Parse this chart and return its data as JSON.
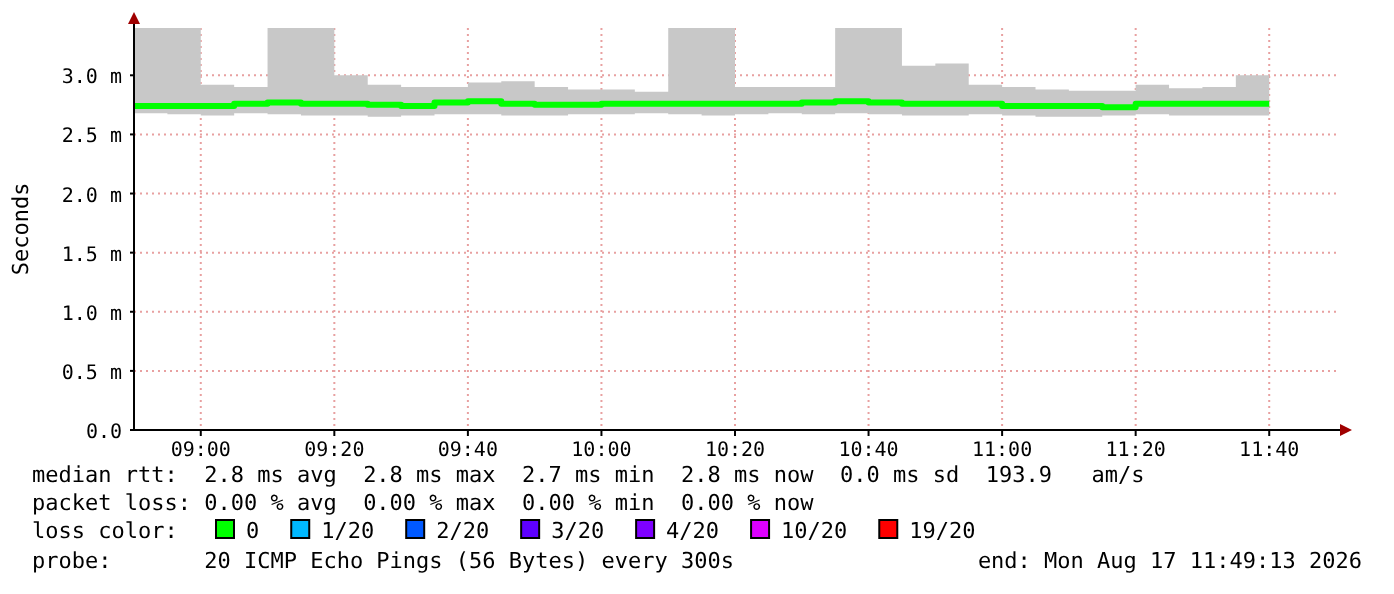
{
  "chart_data": {
    "type": "step",
    "ylabel": "Seconds",
    "legend_title": "loss color:",
    "legend": "bottom",
    "grid": true,
    "x": [
      "2026-08-17T08:50",
      "2026-08-17T08:55",
      "2026-08-17T09:00",
      "2026-08-17T09:05",
      "2026-08-17T09:10",
      "2026-08-17T09:15",
      "2026-08-17T09:20",
      "2026-08-17T09:25",
      "2026-08-17T09:30",
      "2026-08-17T09:35",
      "2026-08-17T09:40",
      "2026-08-17T09:45",
      "2026-08-17T09:50",
      "2026-08-17T09:55",
      "2026-08-17T10:00",
      "2026-08-17T10:05",
      "2026-08-17T10:10",
      "2026-08-17T10:15",
      "2026-08-17T10:20",
      "2026-08-17T10:25",
      "2026-08-17T10:30",
      "2026-08-17T10:35",
      "2026-08-17T10:40",
      "2026-08-17T10:45",
      "2026-08-17T10:50",
      "2026-08-17T10:55",
      "2026-08-17T11:00",
      "2026-08-17T11:05",
      "2026-08-17T11:10",
      "2026-08-17T11:15",
      "2026-08-17T11:20",
      "2026-08-17T11:25",
      "2026-08-17T11:30",
      "2026-08-17T11:35",
      "2026-08-17T11:40"
    ],
    "series": [
      {
        "name": "0",
        "color": "#00ff00",
        "values": [
          2.74,
          2.74,
          2.74,
          2.76,
          2.77,
          2.76,
          2.76,
          2.75,
          2.74,
          2.77,
          2.78,
          2.76,
          2.75,
          2.75,
          2.76,
          2.76,
          2.76,
          2.76,
          2.76,
          2.76,
          2.77,
          2.78,
          2.77,
          2.76,
          2.76,
          2.76,
          2.74,
          2.74,
          2.74,
          2.73,
          2.76,
          2.76,
          2.76,
          2.76,
          2.76
        ],
        "lower": [
          2.68,
          2.67,
          2.66,
          2.68,
          2.67,
          2.66,
          2.66,
          2.65,
          2.66,
          2.67,
          2.67,
          2.66,
          2.66,
          2.67,
          2.67,
          2.68,
          2.67,
          2.66,
          2.67,
          2.68,
          2.67,
          2.68,
          2.67,
          2.66,
          2.66,
          2.67,
          2.66,
          2.65,
          2.65,
          2.66,
          2.67,
          2.66,
          2.66,
          2.66,
          2.66
        ],
        "upper": [
          3.4,
          3.4,
          2.92,
          2.9,
          3.4,
          3.4,
          3.0,
          2.92,
          2.9,
          2.9,
          2.94,
          2.95,
          2.9,
          2.88,
          2.88,
          2.86,
          3.4,
          3.4,
          2.9,
          2.9,
          2.9,
          3.4,
          3.4,
          3.08,
          3.1,
          2.92,
          2.9,
          2.88,
          2.87,
          2.87,
          2.92,
          2.89,
          2.9,
          3.0,
          3.0
        ]
      },
      {
        "name": "1/20",
        "color": "#00b8ff",
        "values": [
          null,
          null,
          null,
          null,
          null,
          null,
          null,
          null,
          null,
          null,
          null,
          null,
          null,
          null,
          null,
          null,
          null,
          null,
          null,
          null,
          null,
          null,
          null,
          null,
          null,
          null,
          null,
          null,
          null,
          null,
          null,
          null,
          null,
          null,
          null
        ]
      },
      {
        "name": "2/20",
        "color": "#0059ff",
        "values": [
          null,
          null,
          null,
          null,
          null,
          null,
          null,
          null,
          null,
          null,
          null,
          null,
          null,
          null,
          null,
          null,
          null,
          null,
          null,
          null,
          null,
          null,
          null,
          null,
          null,
          null,
          null,
          null,
          null,
          null,
          null,
          null,
          null,
          null,
          null
        ]
      },
      {
        "name": "3/20",
        "color": "#5e00ff",
        "values": [
          null,
          null,
          null,
          null,
          null,
          null,
          null,
          null,
          null,
          null,
          null,
          null,
          null,
          null,
          null,
          null,
          null,
          null,
          null,
          null,
          null,
          null,
          null,
          null,
          null,
          null,
          null,
          null,
          null,
          null,
          null,
          null,
          null,
          null,
          null
        ]
      },
      {
        "name": "4/20",
        "color": "#7e00ff",
        "values": [
          null,
          null,
          null,
          null,
          null,
          null,
          null,
          null,
          null,
          null,
          null,
          null,
          null,
          null,
          null,
          null,
          null,
          null,
          null,
          null,
          null,
          null,
          null,
          null,
          null,
          null,
          null,
          null,
          null,
          null,
          null,
          null,
          null,
          null,
          null
        ]
      },
      {
        "name": "10/20",
        "color": "#dd00ff",
        "values": [
          null,
          null,
          null,
          null,
          null,
          null,
          null,
          null,
          null,
          null,
          null,
          null,
          null,
          null,
          null,
          null,
          null,
          null,
          null,
          null,
          null,
          null,
          null,
          null,
          null,
          null,
          null,
          null,
          null,
          null,
          null,
          null,
          null,
          null,
          null
        ]
      },
      {
        "name": "19/20",
        "color": "#ff0000",
        "values": [
          null,
          null,
          null,
          null,
          null,
          null,
          null,
          null,
          null,
          null,
          null,
          null,
          null,
          null,
          null,
          null,
          null,
          null,
          null,
          null,
          null,
          null,
          null,
          null,
          null,
          null,
          null,
          null,
          null,
          null,
          null,
          null,
          null,
          null,
          null
        ]
      }
    ],
    "xlim": [
      "2026-08-17T08:50",
      "2026-08-17T11:50"
    ],
    "xticks": [
      {
        "value": "2026-08-17T09:00",
        "label": "09:00"
      },
      {
        "value": "2026-08-17T09:20",
        "label": "09:20"
      },
      {
        "value": "2026-08-17T09:40",
        "label": "09:40"
      },
      {
        "value": "2026-08-17T10:00",
        "label": "10:00"
      },
      {
        "value": "2026-08-17T10:20",
        "label": "10:20"
      },
      {
        "value": "2026-08-17T10:40",
        "label": "10:40"
      },
      {
        "value": "2026-08-17T11:00",
        "label": "11:00"
      },
      {
        "value": "2026-08-17T11:20",
        "label": "11:20"
      },
      {
        "value": "2026-08-17T11:40",
        "label": "11:40"
      }
    ],
    "ylim": [
      0,
      3.4
    ],
    "yticks": [
      {
        "value": 0,
        "label": "0.0"
      },
      {
        "value": 0.5,
        "label": "0.5 m"
      },
      {
        "value": 1,
        "label": "1.0 m"
      },
      {
        "value": 1.5,
        "label": "1.5 m"
      },
      {
        "value": 2,
        "label": "2.0 m"
      },
      {
        "value": 2.5,
        "label": "2.5 m"
      },
      {
        "value": 3,
        "label": "3.0 m"
      }
    ],
    "annotations": [
      "median rtt:  2.8 ms avg  2.8 ms max  2.7 ms min  2.8 ms now  0.0 ms sd  193.9   am/s",
      "packet loss: 0.00 % avg  0.00 % max  0.00 % min  0.00 % now",
      "probe:       20 ICMP Echo Pings (56 Bytes) every 300s",
      "end: Mon Aug 17 11:49:13 2026"
    ]
  }
}
